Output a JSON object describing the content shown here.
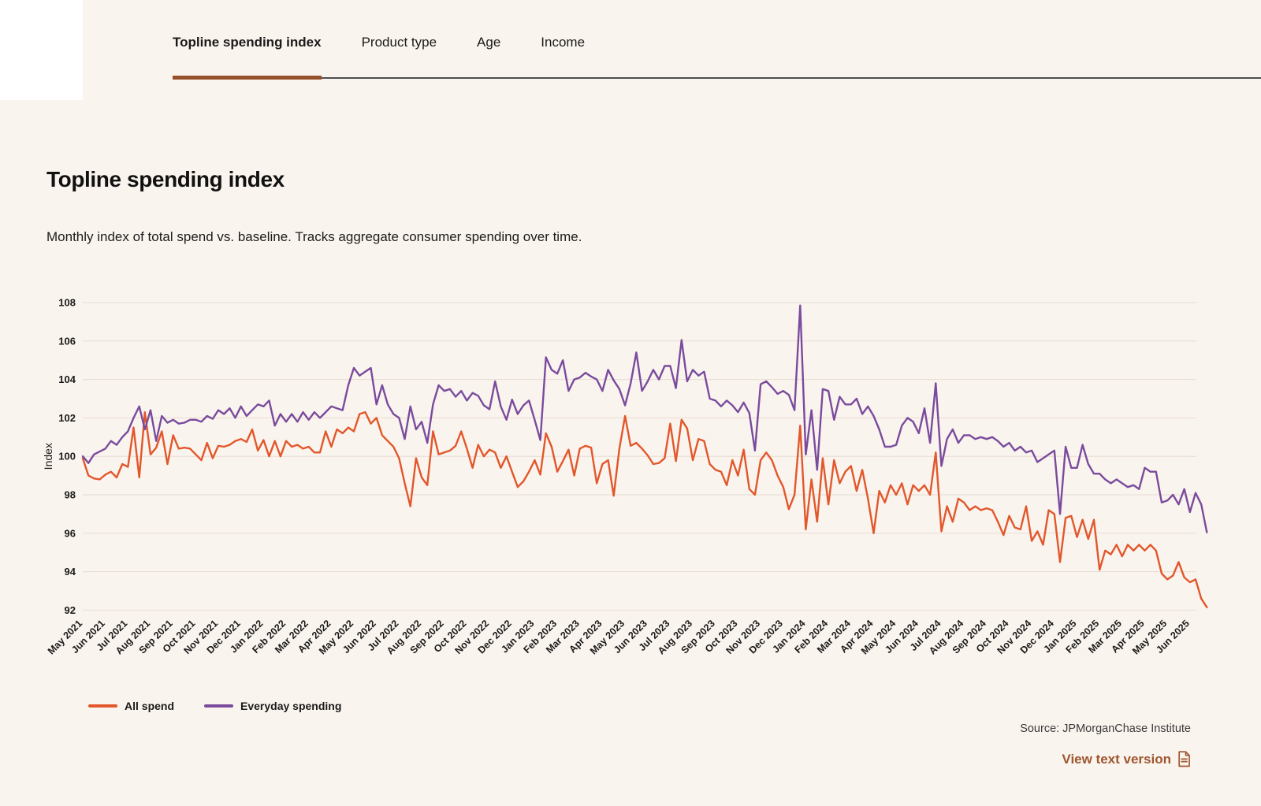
{
  "tabs": {
    "items": [
      {
        "label": "Topline spending index",
        "active": true
      },
      {
        "label": "Product type",
        "active": false
      },
      {
        "label": "Age",
        "active": false
      },
      {
        "label": "Income",
        "active": false
      }
    ]
  },
  "header": {
    "title": "Topline spending index",
    "subtitle": "Monthly index of total spend vs. baseline. Tracks aggregate consumer spending over time."
  },
  "chart_data": {
    "type": "line",
    "title": "Topline spending index",
    "xlabel": "",
    "ylabel": "Index",
    "ylim": [
      92,
      108
    ],
    "yticks": [
      92,
      94,
      96,
      98,
      100,
      102,
      104,
      106,
      108
    ],
    "grid": "horizontal",
    "legend_position": "bottom-left",
    "points_per_month": 4,
    "x_tick_labels": [
      "May 2021",
      "Jun 2021",
      "Jul 2021",
      "Aug 2021",
      "Sep 2021",
      "Oct 2021",
      "Nov 2021",
      "Dec 2021",
      "Jan 2022",
      "Feb 2022",
      "Mar 2022",
      "Apr 2022",
      "May 2022",
      "Jun 2022",
      "Jul 2022",
      "Aug 2022",
      "Sep 2022",
      "Oct 2022",
      "Nov 2022",
      "Dec 2022",
      "Jan 2023",
      "Feb 2023",
      "Mar 2023",
      "Apr 2023",
      "May 2023",
      "Jun 2023",
      "Jul 2023",
      "Aug 2023",
      "Sep 2023",
      "Oct 2023",
      "Nov 2023",
      "Dec 2023",
      "Jan 2024",
      "Feb 2024",
      "Mar 2024",
      "Apr 2024",
      "May 2024",
      "Jun 2024",
      "Jul 2024",
      "Aug 2024",
      "Sep 2024",
      "Oct 2024",
      "Nov 2024",
      "Dec 2024",
      "Jan 2025",
      "Feb 2025",
      "Mar 2025",
      "Apr 2025",
      "May 2025",
      "Jun 2025"
    ],
    "series": [
      {
        "name": "All spend",
        "color": "#e2572b",
        "values": [
          99.9,
          99.0,
          98.85,
          98.8,
          99.05,
          99.2,
          98.9,
          99.6,
          99.45,
          101.5,
          98.9,
          102.3,
          100.1,
          100.45,
          101.3,
          99.6,
          101.1,
          100.4,
          100.45,
          100.4,
          100.1,
          99.8,
          100.7,
          99.9,
          100.55,
          100.5,
          100.6,
          100.8,
          100.9,
          100.75,
          101.4,
          100.3,
          100.85,
          100.0,
          100.8,
          100.0,
          100.8,
          100.5,
          100.6,
          100.4,
          100.5,
          100.2,
          100.2,
          101.3,
          100.5,
          101.4,
          101.2,
          101.5,
          101.3,
          102.2,
          102.3,
          101.7,
          102.0,
          101.1,
          100.8,
          100.5,
          99.9,
          98.6,
          97.4,
          99.9,
          98.9,
          98.5,
          101.3,
          100.1,
          100.2,
          100.3,
          100.55,
          101.3,
          100.4,
          99.4,
          100.6,
          100.0,
          100.35,
          100.2,
          99.4,
          100.0,
          99.2,
          98.4,
          98.7,
          99.2,
          99.8,
          99.05,
          101.2,
          100.5,
          99.2,
          99.75,
          100.35,
          99.0,
          100.4,
          100.55,
          100.45,
          98.6,
          99.6,
          99.8,
          97.95,
          100.4,
          102.1,
          100.55,
          100.7,
          100.4,
          100.05,
          99.6,
          99.65,
          99.9,
          101.7,
          99.75,
          101.9,
          101.45,
          99.8,
          100.9,
          100.8,
          99.6,
          99.3,
          99.2,
          98.5,
          99.8,
          99.0,
          100.35,
          98.3,
          98.0,
          99.8,
          100.2,
          99.8,
          99.0,
          98.4,
          97.25,
          98.0,
          101.6,
          96.2,
          98.8,
          96.6,
          99.9,
          97.5,
          99.8,
          98.6,
          99.2,
          99.5,
          98.2,
          99.3,
          97.8,
          96.0,
          98.2,
          97.6,
          98.5,
          98.0,
          98.6,
          97.5,
          98.5,
          98.2,
          98.5,
          98.0,
          100.2,
          96.1,
          97.4,
          96.6,
          97.8,
          97.6,
          97.2,
          97.4,
          97.2,
          97.3,
          97.2,
          96.6,
          95.9,
          96.9,
          96.3,
          96.2,
          97.4,
          95.6,
          96.1,
          95.4,
          97.2,
          97.0,
          94.5,
          96.8,
          96.9,
          95.8,
          96.7,
          95.7,
          96.7,
          94.1,
          95.1,
          94.9,
          95.4,
          94.8,
          95.4,
          95.1,
          95.4,
          95.1,
          95.4,
          95.1,
          93.9,
          93.6,
          93.8,
          94.5,
          93.7,
          93.45,
          93.6,
          92.6,
          92.15
        ]
      },
      {
        "name": "Everyday spending",
        "color": "#7a4b9d",
        "values": [
          100.0,
          99.65,
          100.1,
          100.25,
          100.4,
          100.8,
          100.6,
          101.0,
          101.3,
          102.0,
          102.6,
          101.4,
          102.4,
          100.8,
          102.1,
          101.75,
          101.9,
          101.7,
          101.75,
          101.9,
          101.9,
          101.8,
          102.1,
          101.95,
          102.4,
          102.2,
          102.5,
          102.0,
          102.6,
          102.1,
          102.4,
          102.7,
          102.6,
          102.9,
          101.6,
          102.2,
          101.8,
          102.2,
          101.8,
          102.3,
          101.9,
          102.3,
          102.0,
          102.3,
          102.6,
          102.5,
          102.4,
          103.7,
          104.6,
          104.2,
          104.4,
          104.6,
          102.7,
          103.7,
          102.7,
          102.2,
          102.0,
          100.9,
          102.6,
          101.4,
          101.8,
          100.7,
          102.7,
          103.7,
          103.4,
          103.5,
          103.1,
          103.4,
          102.9,
          103.3,
          103.15,
          102.65,
          102.45,
          103.9,
          102.6,
          101.9,
          102.95,
          102.2,
          102.65,
          102.9,
          101.9,
          100.85,
          105.15,
          104.5,
          104.3,
          105.0,
          103.4,
          104.0,
          104.1,
          104.35,
          104.15,
          104.0,
          103.4,
          104.5,
          103.95,
          103.5,
          102.65,
          103.8,
          105.4,
          103.4,
          103.9,
          104.5,
          104.0,
          104.7,
          104.7,
          103.55,
          106.05,
          103.9,
          104.5,
          104.2,
          104.4,
          103.0,
          102.9,
          102.6,
          102.9,
          102.65,
          102.3,
          102.8,
          102.25,
          100.3,
          103.75,
          103.9,
          103.6,
          103.25,
          103.4,
          103.2,
          102.4,
          107.85,
          100.1,
          102.4,
          99.3,
          103.5,
          103.4,
          101.9,
          103.1,
          102.7,
          102.7,
          103.0,
          102.2,
          102.6,
          102.1,
          101.4,
          100.5,
          100.5,
          100.6,
          101.6,
          102.0,
          101.8,
          101.2,
          102.5,
          100.7,
          103.8,
          99.5,
          100.9,
          101.4,
          100.7,
          101.1,
          101.1,
          100.9,
          101.0,
          100.9,
          101.0,
          100.8,
          100.5,
          100.7,
          100.3,
          100.5,
          100.2,
          100.3,
          99.7,
          99.9,
          100.1,
          100.3,
          97.0,
          100.5,
          99.4,
          99.4,
          100.6,
          99.6,
          99.1,
          99.1,
          98.8,
          98.6,
          98.8,
          98.6,
          98.4,
          98.5,
          98.3,
          99.4,
          99.2,
          99.2,
          97.6,
          97.7,
          98.0,
          97.5,
          98.3,
          97.1,
          98.1,
          97.5,
          96.05
        ]
      }
    ]
  },
  "footer": {
    "source": "Source: JPMorganChase Institute",
    "text_version_label": "View text version"
  },
  "colors": {
    "background": "#faf4ee",
    "accent_brown": "#9d5630",
    "tab_underline_brown": "#96512b",
    "divider_gray": "#4e4e4e",
    "gridline": "#e7dcd3",
    "all_spend_orange": "#e2572b",
    "everyday_spending_purple": "#7a4b9d"
  }
}
